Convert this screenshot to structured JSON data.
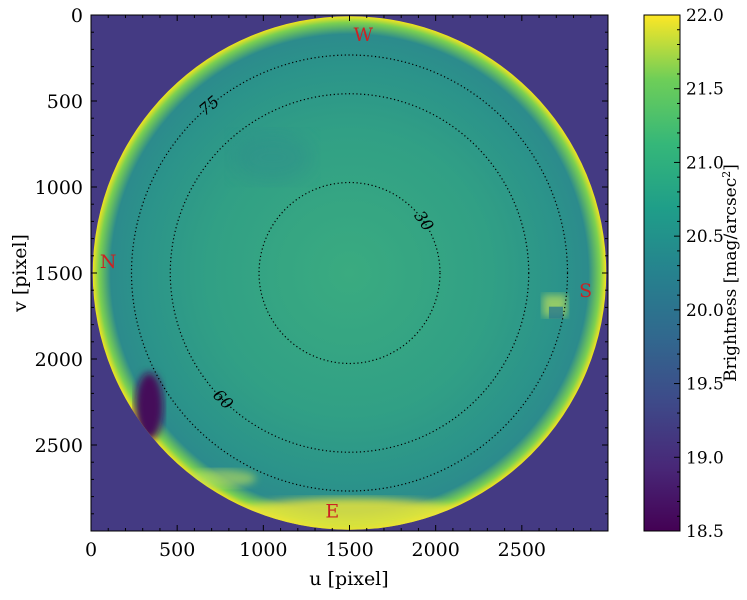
{
  "chart_data": {
    "type": "heatmap",
    "title": "",
    "xlabel": "u [pixel]",
    "ylabel": "v [pixel]",
    "xlim": [
      0,
      3000
    ],
    "ylim": [
      3000,
      0
    ],
    "x_ticks": [
      "0",
      "500",
      "1000",
      "1500",
      "2000",
      "2500"
    ],
    "x_tick_values": [
      0,
      500,
      1000,
      1500,
      2000,
      2500
    ],
    "y_ticks": [
      "0",
      "500",
      "1000",
      "1500",
      "2000",
      "2500"
    ],
    "y_tick_values": [
      0,
      500,
      1000,
      1500,
      2000,
      2500
    ],
    "image_center": [
      1500,
      1500
    ],
    "image_radius": 1490,
    "colorbar": {
      "label": "Brightness [mag/arcsec",
      "label_sup": "2",
      "label_end": "]",
      "range": [
        18.5,
        22.0
      ],
      "ticks": [
        "18.5",
        "19.0",
        "19.5",
        "20.0",
        "20.5",
        "21.0",
        "21.5",
        "22.0"
      ],
      "tick_values": [
        18.5,
        19.0,
        19.5,
        20.0,
        20.5,
        21.0,
        21.5,
        22.0
      ],
      "colormap": "viridis"
    },
    "contours": [
      {
        "label": "30",
        "radius_px": 525,
        "label_angle_deg": 325
      },
      {
        "label": "60",
        "radius_px": 1040,
        "label_angle_deg": 135
      },
      {
        "label": "75",
        "radius_px": 1265,
        "label_angle_deg": 230
      }
    ],
    "directions": [
      {
        "label": "W",
        "u": 1580,
        "v": 110
      },
      {
        "label": "N",
        "u": 100,
        "v": 1430
      },
      {
        "label": "S",
        "u": 2870,
        "v": 1600
      },
      {
        "label": "E",
        "u": 1400,
        "v": 2880
      }
    ]
  },
  "colors": {
    "background": "#443a83",
    "sky_center": "#34a584",
    "sky_mid": "#2a8e8c",
    "rim": "#f0e51f",
    "dark": "#45085a",
    "direction_labels": "#cc2222"
  }
}
